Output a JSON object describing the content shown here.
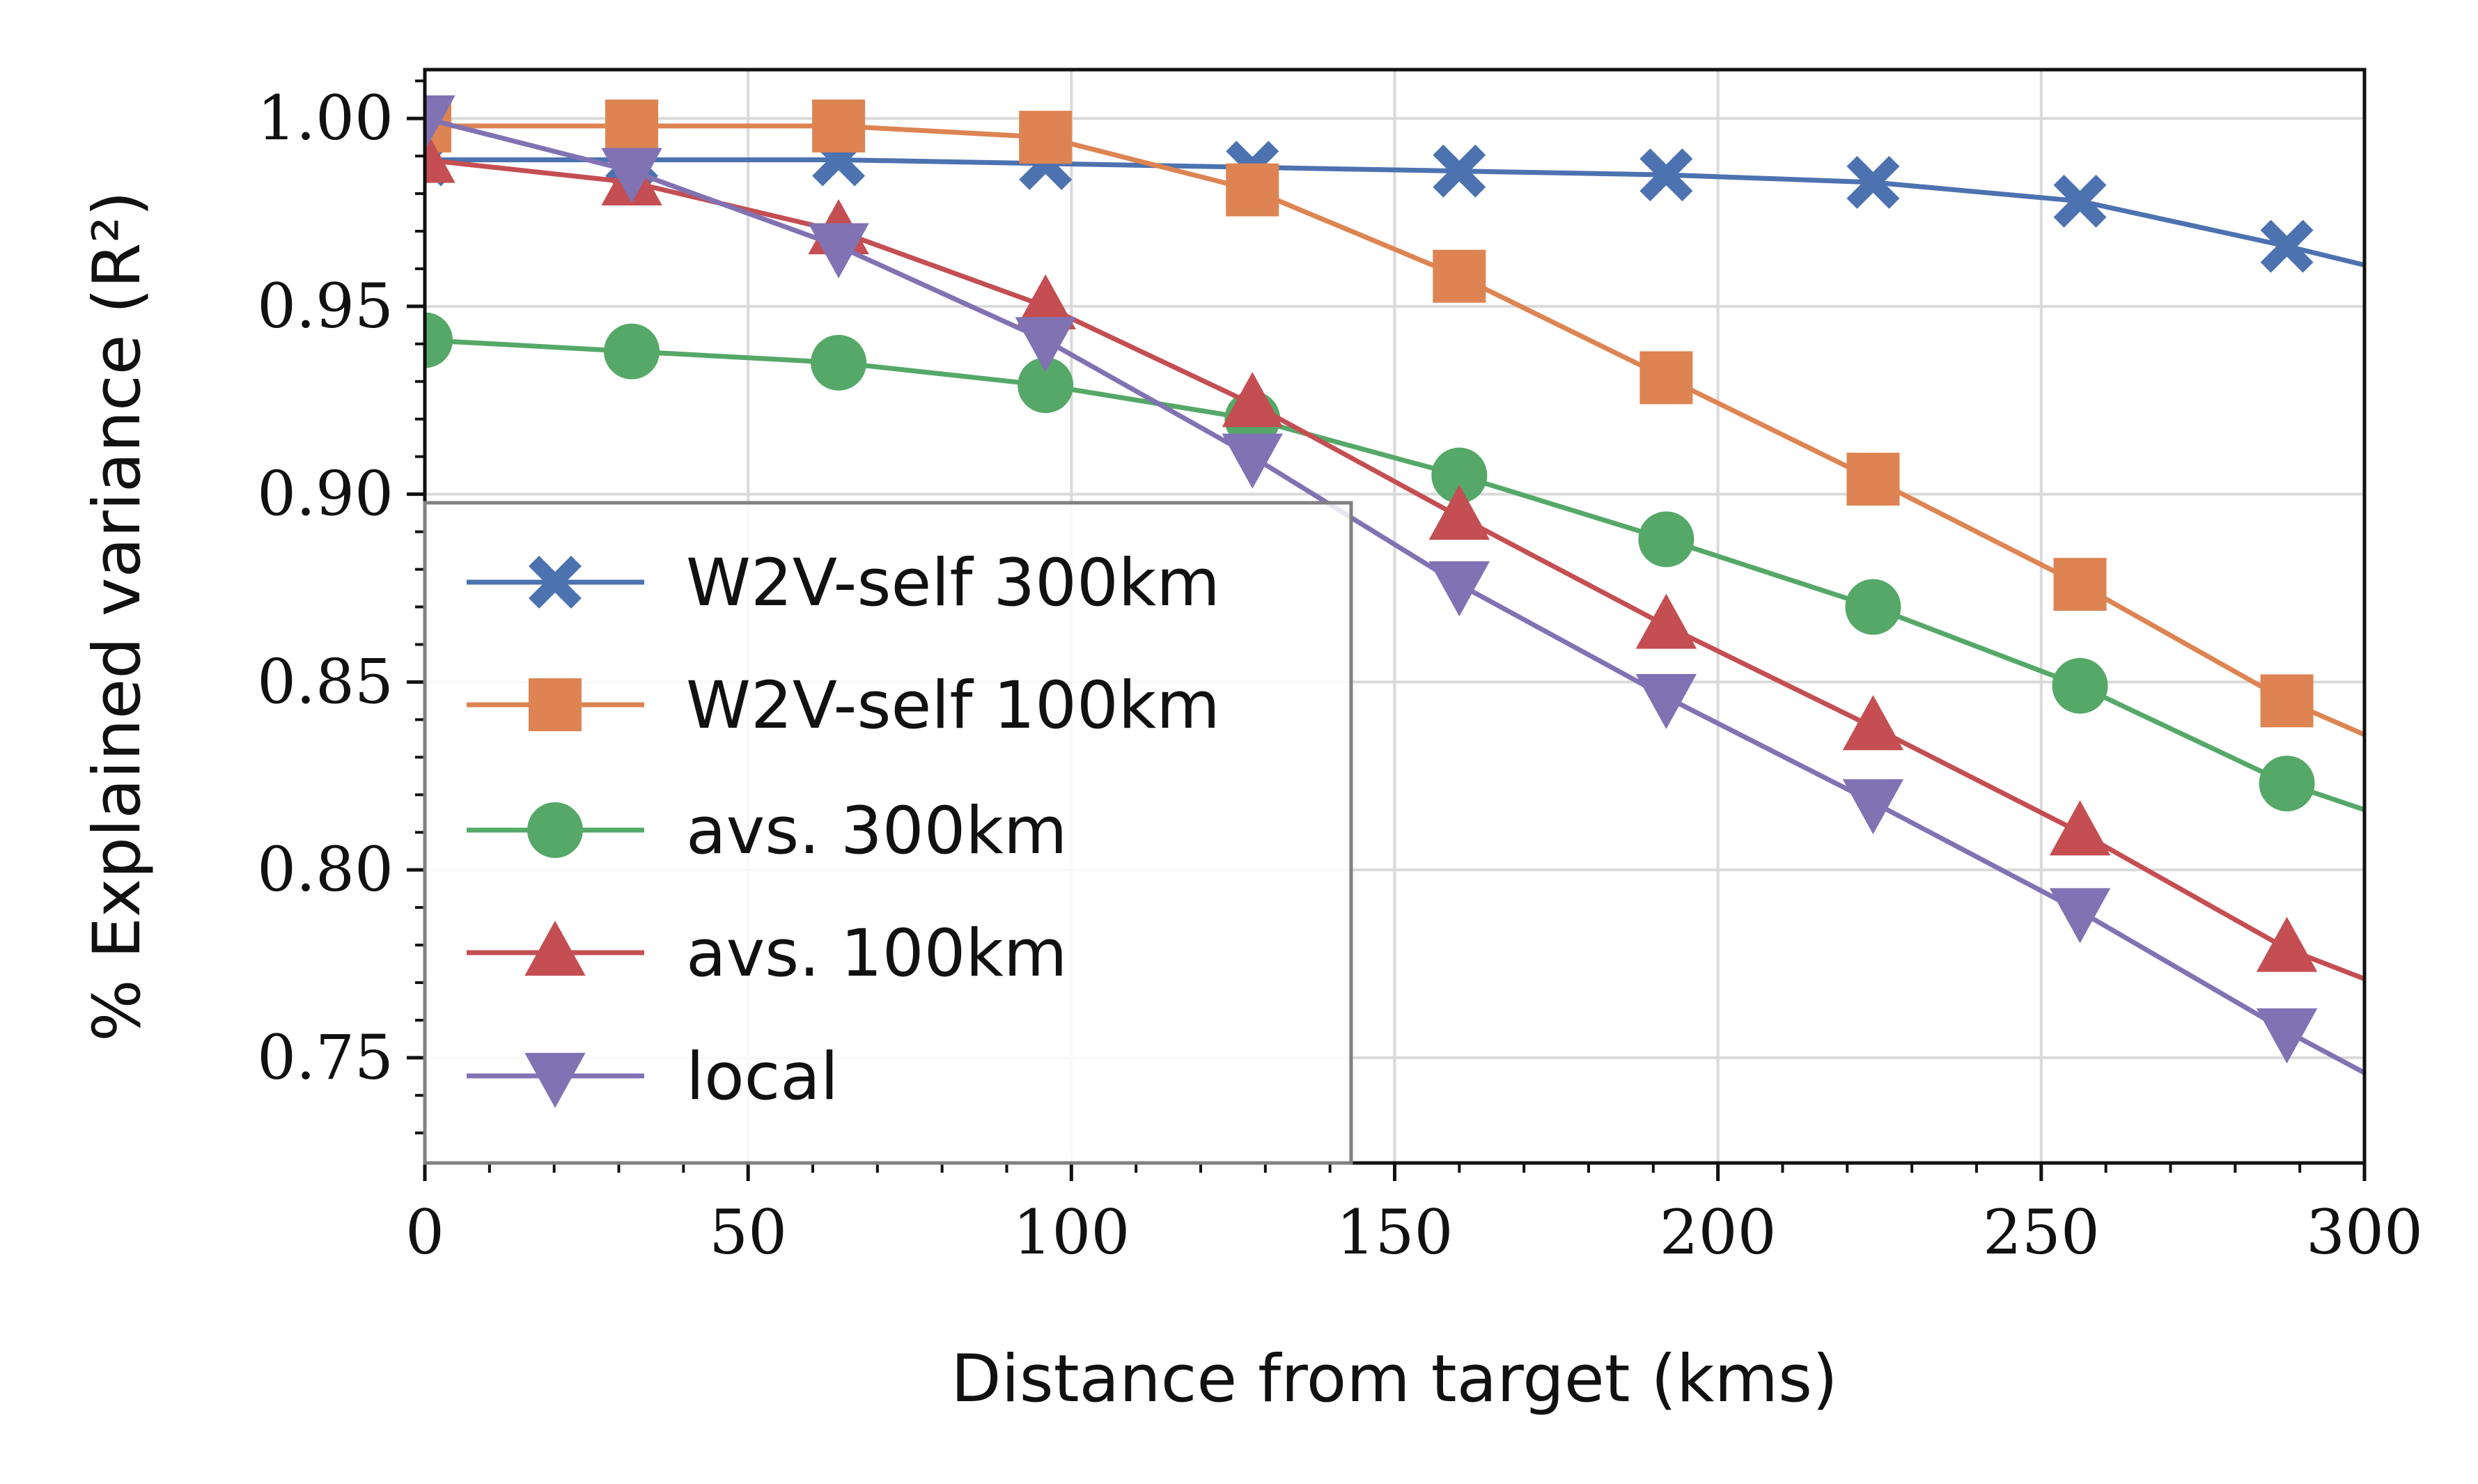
{
  "chart_data": {
    "type": "line",
    "title": "",
    "xlabel": "Distance from target (kms)",
    "ylabel": "% Explained variance (R²)",
    "xlim": [
      0,
      300
    ],
    "ylim": [
      0.722,
      1.013
    ],
    "xticks": [
      0,
      50,
      100,
      150,
      200,
      250,
      300
    ],
    "xtick_labels": [
      "0",
      "50",
      "100",
      "150",
      "200",
      "250",
      "300"
    ],
    "yticks": [
      0.75,
      0.8,
      0.85,
      0.9,
      0.95,
      1.0
    ],
    "ytick_labels": [
      "0.75",
      "0.80",
      "0.85",
      "0.90",
      "0.95",
      "1.00"
    ],
    "grid": true,
    "legend_position": "lower-left",
    "x": [
      0,
      32,
      64,
      96,
      128,
      160,
      192,
      224,
      256,
      288,
      300
    ],
    "marker_count": 10,
    "series": [
      {
        "name": "W2V-self 300km",
        "color": "#4c72b0",
        "marker": "x-icon",
        "values": [
          0.989,
          0.989,
          0.989,
          0.988,
          0.987,
          0.986,
          0.985,
          0.983,
          0.978,
          0.966,
          0.961
        ]
      },
      {
        "name": "W2V-self 100km",
        "color": "#dd8452",
        "marker": "square-icon",
        "values": [
          0.998,
          0.998,
          0.998,
          0.995,
          0.981,
          0.958,
          0.931,
          0.904,
          0.876,
          0.845,
          0.836
        ]
      },
      {
        "name": "avs. 300km",
        "color": "#55a868",
        "marker": "circle-icon",
        "values": [
          0.941,
          0.938,
          0.935,
          0.929,
          0.92,
          0.905,
          0.888,
          0.87,
          0.849,
          0.823,
          0.816
        ]
      },
      {
        "name": "avs. 100km",
        "color": "#c44e52",
        "marker": "triangle-up-icon",
        "values": [
          0.989,
          0.983,
          0.97,
          0.95,
          0.924,
          0.894,
          0.865,
          0.838,
          0.81,
          0.779,
          0.771
        ]
      },
      {
        "name": "local",
        "color": "#8172b3",
        "marker": "triangle-down-icon",
        "values": [
          1.0,
          0.986,
          0.966,
          0.941,
          0.91,
          0.876,
          0.846,
          0.818,
          0.789,
          0.757,
          0.746
        ]
      }
    ]
  }
}
